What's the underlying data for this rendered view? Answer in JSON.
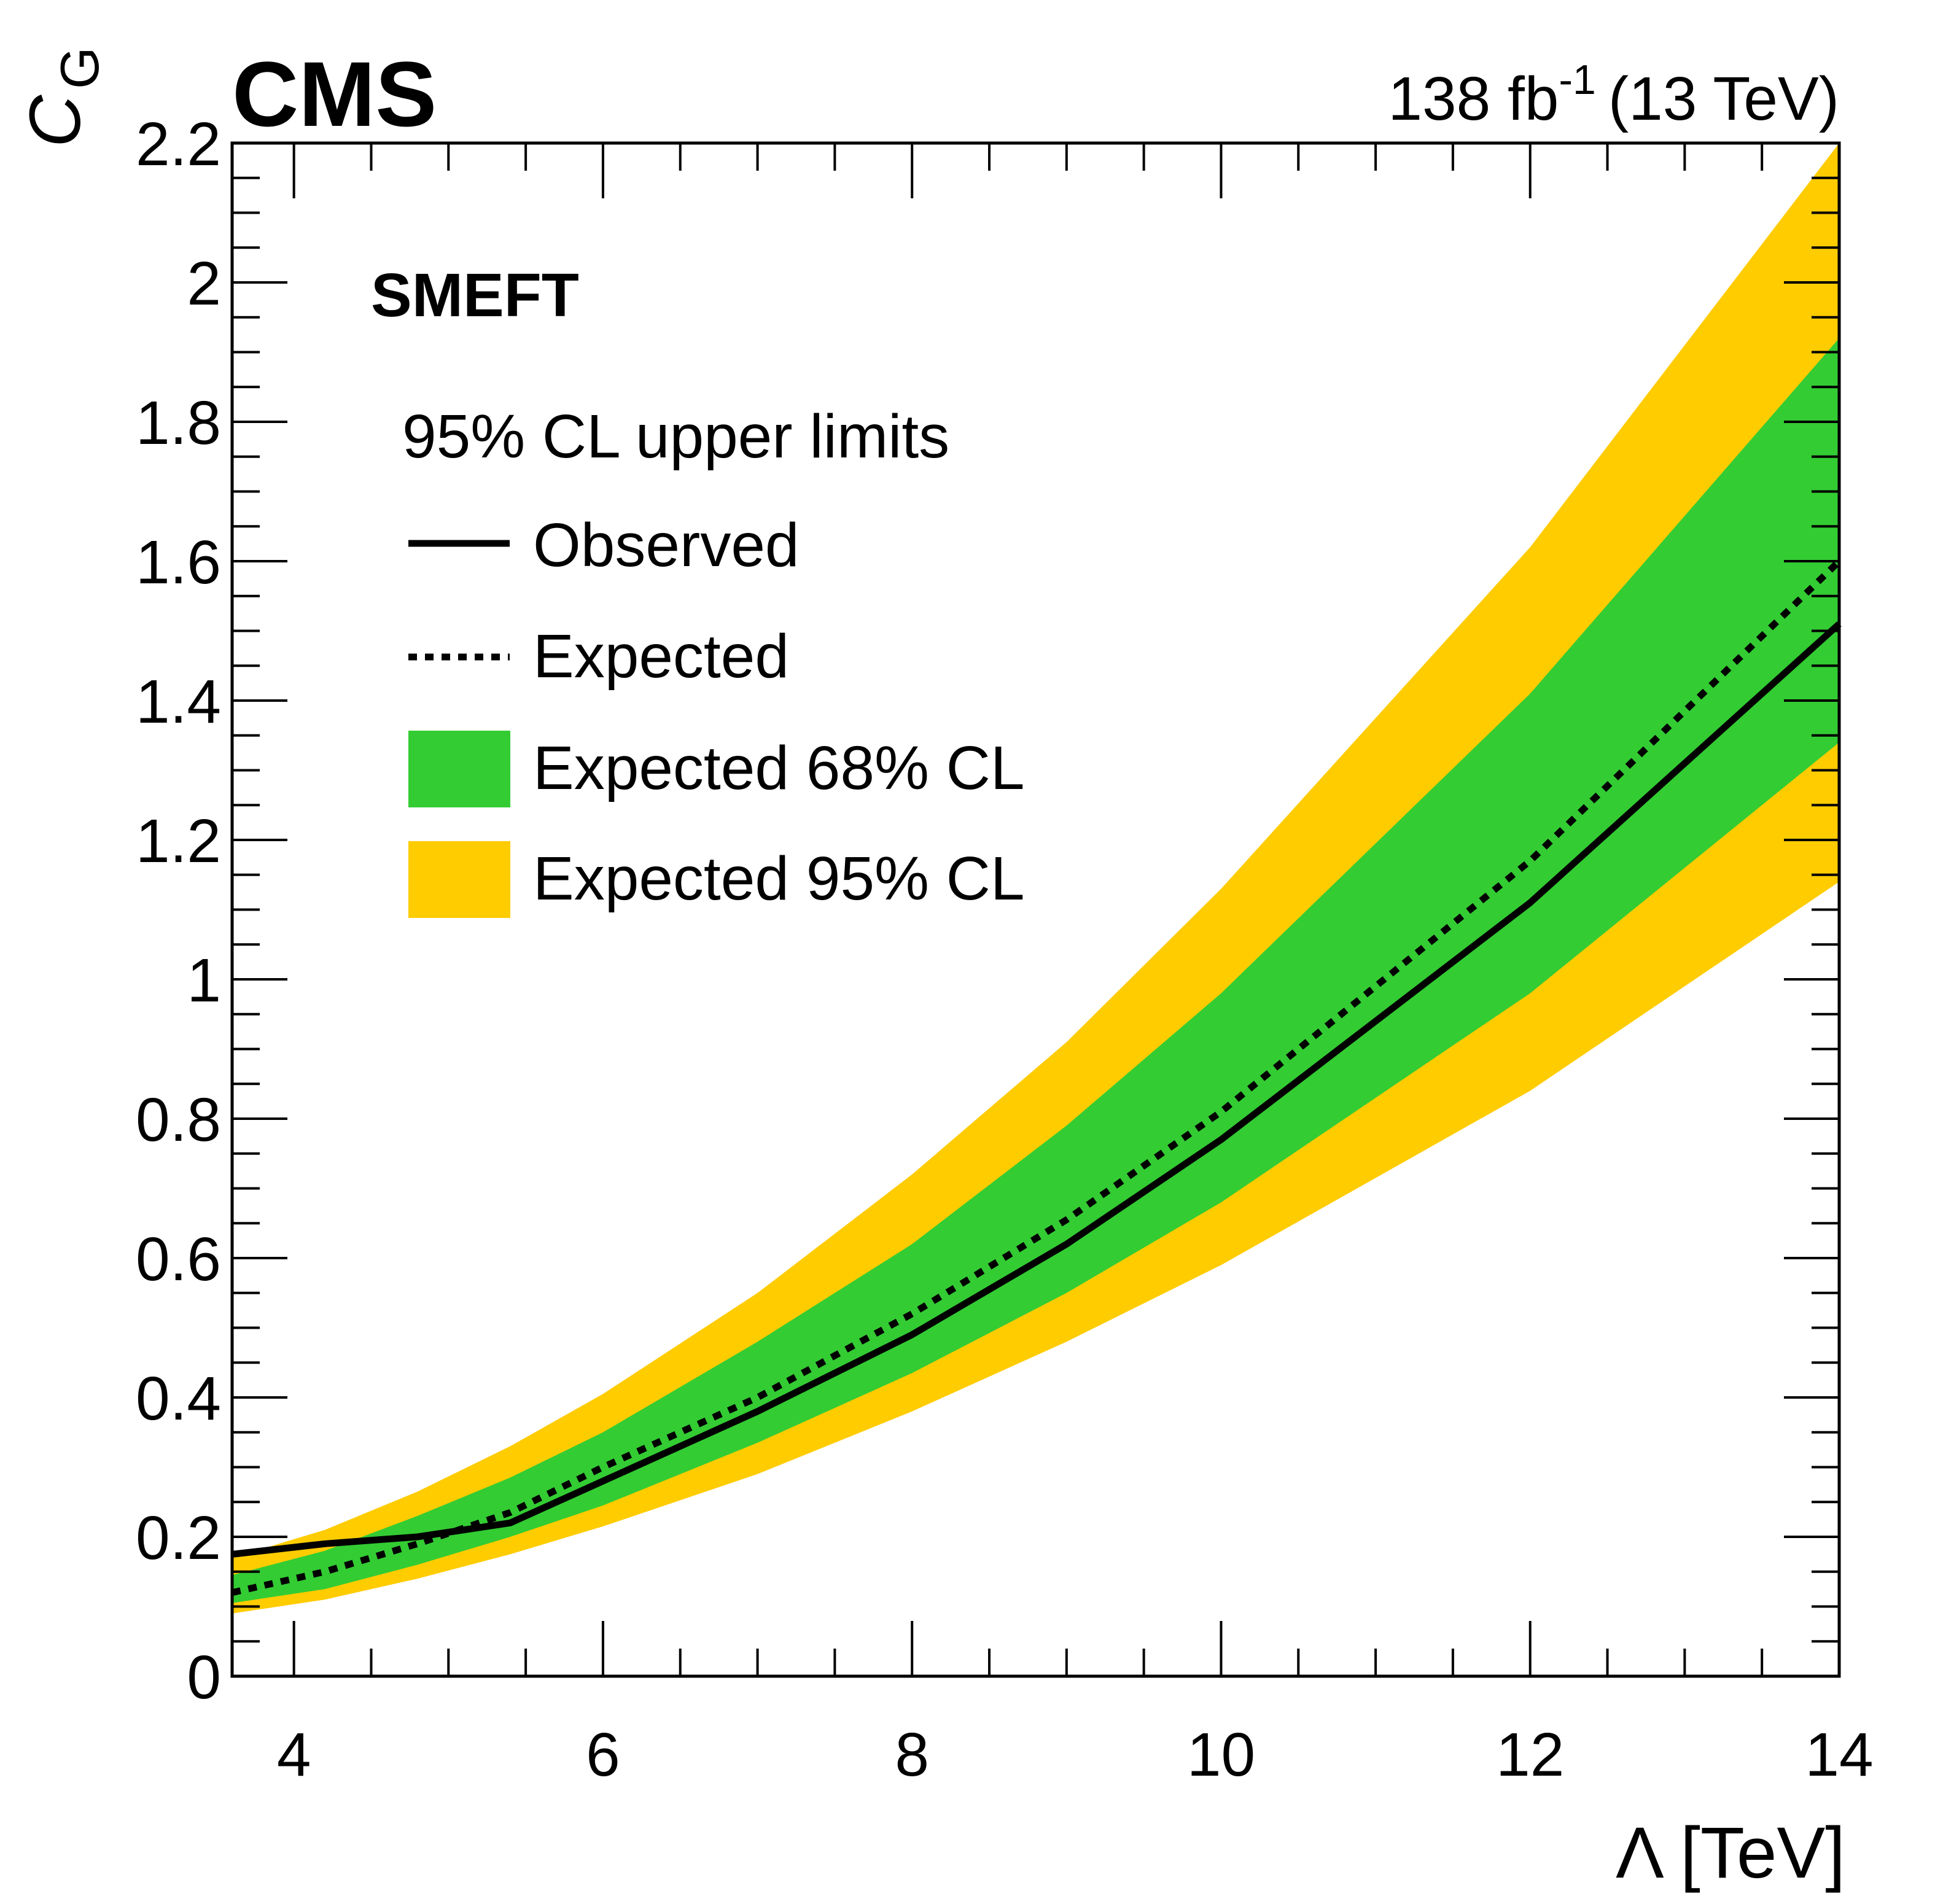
{
  "header": {
    "experiment": "CMS",
    "lumi_value": "138 fb",
    "lumi_exponent": "-1",
    "energy": "(13 TeV)"
  },
  "legend": {
    "model": "SMEFT",
    "title": "95% CL upper limits",
    "observed": "Observed",
    "expected": "Expected",
    "band68": "Expected 68% CL",
    "band95": "Expected 95% CL"
  },
  "colors": {
    "band68": "#33cc33",
    "band95": "#ffcc00",
    "line": "#000000"
  },
  "chart_data": {
    "type": "line",
    "title": "",
    "xlabel": "Λ [TeV]",
    "ylabel_main": "C",
    "ylabel_sub": "G",
    "xlim": [
      3.6,
      14
    ],
    "ylim": [
      0,
      2.2
    ],
    "xticks": [
      4,
      6,
      8,
      10,
      12,
      14
    ],
    "xtick_labels": [
      "4",
      "6",
      "8",
      "10",
      "12",
      "14"
    ],
    "yticks": [
      0,
      0.2,
      0.4,
      0.6,
      0.8,
      1,
      1.2,
      1.4,
      1.6,
      1.8,
      2,
      2.2
    ],
    "ytick_labels": [
      "0",
      "0.2",
      "0.4",
      "0.6",
      "0.8",
      "1",
      "1.2",
      "1.4",
      "1.6",
      "1.8",
      "2",
      "2.2"
    ],
    "x": [
      3.6,
      4.2,
      4.8,
      5.4,
      6,
      7,
      8,
      9,
      10,
      12,
      14
    ],
    "series": [
      {
        "name": "Observed",
        "style": "solid",
        "values": [
          0.175,
          0.19,
          0.2,
          0.22,
          0.28,
          0.38,
          0.49,
          0.62,
          0.77,
          1.11,
          1.51
        ]
      },
      {
        "name": "Expected",
        "style": "dotted",
        "values": [
          0.12,
          0.15,
          0.19,
          0.235,
          0.3,
          0.4,
          0.52,
          0.655,
          0.81,
          1.17,
          1.6
        ]
      }
    ],
    "bands": [
      {
        "name": "Expected 95% CL",
        "lower": [
          0.09,
          0.11,
          0.14,
          0.175,
          0.215,
          0.29,
          0.38,
          0.48,
          0.59,
          0.84,
          1.14
        ],
        "upper": [
          0.17,
          0.21,
          0.265,
          0.33,
          0.405,
          0.55,
          0.72,
          0.91,
          1.13,
          1.62,
          2.2
        ]
      },
      {
        "name": "Expected 68% CL",
        "lower": [
          0.105,
          0.125,
          0.16,
          0.2,
          0.245,
          0.335,
          0.435,
          0.55,
          0.68,
          0.98,
          1.34
        ]
      },
      {
        "name": "Expected 68% CL upper",
        "upper": [
          0.145,
          0.18,
          0.23,
          0.285,
          0.35,
          0.48,
          0.62,
          0.79,
          0.98,
          1.41,
          1.92
        ]
      }
    ]
  }
}
